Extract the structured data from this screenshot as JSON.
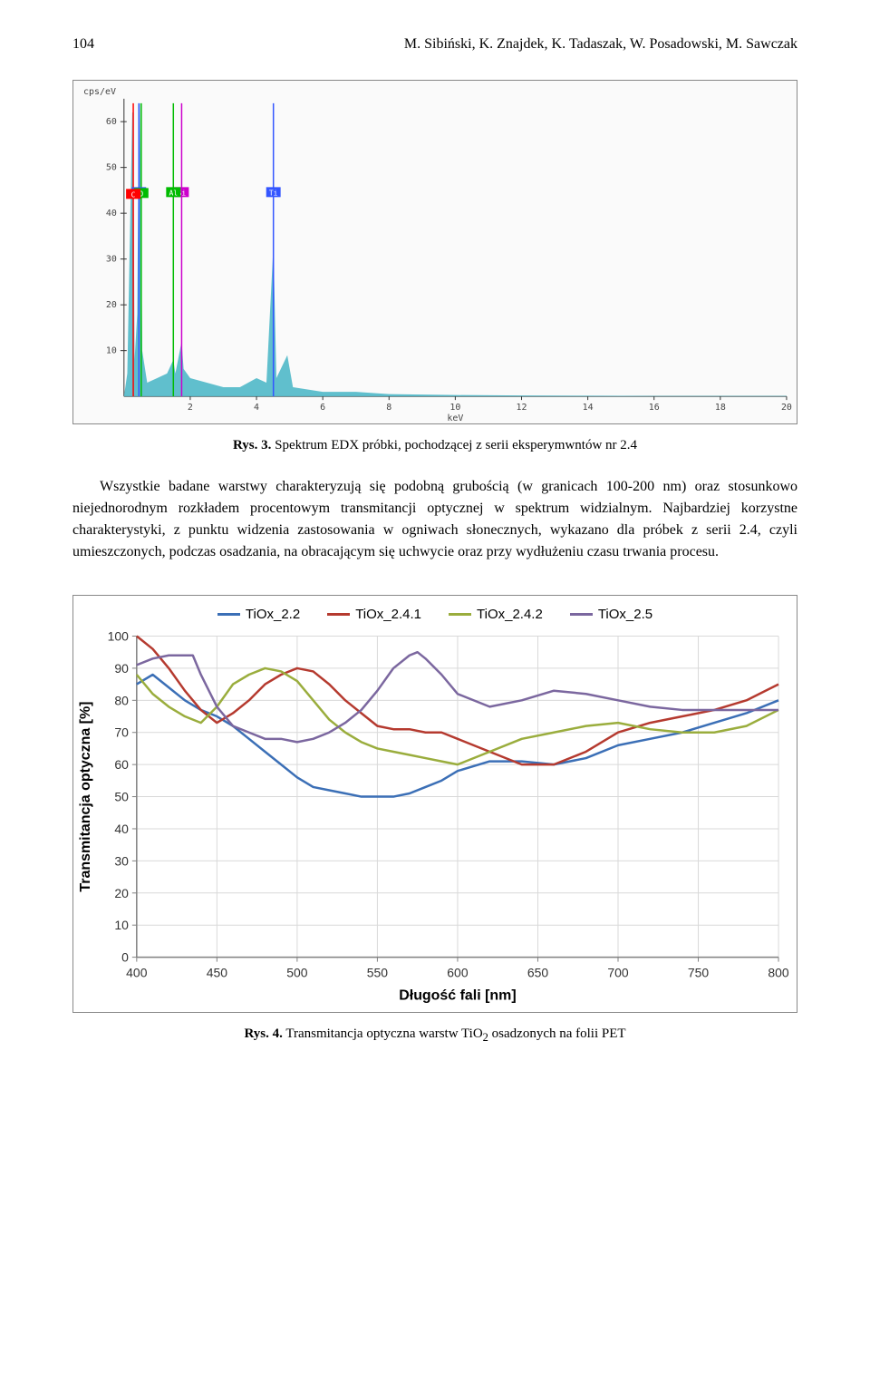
{
  "header": {
    "page_number": "104",
    "authors": "M. Sibiński, K. Znajdek, K. Tadaszak, W. Posadowski, M. Sawczak"
  },
  "edx": {
    "type": "spectrum",
    "y_label": "cps/eV",
    "x_label": "keV",
    "xlim": [
      0,
      20
    ],
    "ylim": [
      0,
      65
    ],
    "y_ticks": [
      10,
      20,
      30,
      40,
      50,
      60
    ],
    "x_ticks": [
      2,
      4,
      6,
      8,
      10,
      12,
      14,
      16,
      18,
      20
    ],
    "background_color": "#fafafa",
    "axis_color": "#333333",
    "element_lines": [
      {
        "label": "Ti",
        "x": 0.45,
        "color": "#3355ff"
      },
      {
        "label": "O",
        "x": 0.52,
        "color": "#00bb00"
      },
      {
        "label": "C",
        "x": 0.28,
        "color": "#ff0000"
      },
      {
        "label": "Si",
        "x": 1.74,
        "color": "#cc00cc"
      },
      {
        "label": "Al",
        "x": 1.49,
        "color": "#00bb00"
      },
      {
        "label": "Ti",
        "x": 4.51,
        "color": "#3355ff"
      }
    ],
    "spectrum_fill": "#4fb8c8",
    "spectrum_points": [
      [
        0,
        0
      ],
      [
        0.1,
        5
      ],
      [
        0.25,
        62
      ],
      [
        0.28,
        62
      ],
      [
        0.32,
        8
      ],
      [
        0.4,
        18
      ],
      [
        0.45,
        64
      ],
      [
        0.48,
        64
      ],
      [
        0.52,
        38
      ],
      [
        0.55,
        10
      ],
      [
        0.7,
        3
      ],
      [
        1.0,
        4
      ],
      [
        1.3,
        5
      ],
      [
        1.49,
        8
      ],
      [
        1.55,
        5
      ],
      [
        1.74,
        12
      ],
      [
        1.8,
        6
      ],
      [
        2.0,
        4
      ],
      [
        2.5,
        3
      ],
      [
        3.0,
        2
      ],
      [
        3.5,
        2
      ],
      [
        4.0,
        4
      ],
      [
        4.3,
        3
      ],
      [
        4.51,
        33
      ],
      [
        4.6,
        4
      ],
      [
        4.93,
        9
      ],
      [
        5.1,
        2
      ],
      [
        6,
        1
      ],
      [
        7,
        1
      ],
      [
        8,
        0.5
      ],
      [
        10,
        0.3
      ],
      [
        12,
        0.2
      ],
      [
        14,
        0.15
      ],
      [
        16,
        0.1
      ],
      [
        18,
        0.1
      ],
      [
        20,
        0.1
      ]
    ],
    "caption_bold": "Rys. 3.",
    "caption_text": " Spektrum EDX próbki, pochodzącej z serii eksperymwntów nr 2.4"
  },
  "paragraph": "Wszystkie badane warstwy charakteryzują się podobną grubością (w granicach 100-200 nm) oraz stosunkowo niejednorodnym rozkładem procentowym transmitancji optycznej w spektrum widzialnym. Najbardziej korzystne charakterystyki, z punktu widzenia zastosowania w ogniwach słonecznych, wykazano dla próbek z serii 2.4, czyli umieszczonych, podczas osadzania, na obracającym się uchwycie oraz przy wydłużeniu czasu trwania procesu.",
  "trans": {
    "type": "line",
    "x_label": "Długość fali [nm]",
    "y_label": "Transmitancja optyczna [%]",
    "xlim": [
      400,
      800
    ],
    "ylim": [
      0,
      100
    ],
    "x_ticks": [
      400,
      450,
      500,
      550,
      600,
      650,
      700,
      750,
      800
    ],
    "y_ticks": [
      0,
      10,
      20,
      30,
      40,
      50,
      60,
      70,
      80,
      90,
      100
    ],
    "grid_color": "#d9d9d9",
    "axis_color": "#808080",
    "line_width": 2.5,
    "series": [
      {
        "name": "TiOx_2.2",
        "color": "#3b6fb6",
        "points": [
          [
            400,
            85
          ],
          [
            410,
            88
          ],
          [
            420,
            84
          ],
          [
            430,
            80
          ],
          [
            440,
            77
          ],
          [
            450,
            75
          ],
          [
            460,
            72
          ],
          [
            470,
            68
          ],
          [
            480,
            64
          ],
          [
            490,
            60
          ],
          [
            500,
            56
          ],
          [
            510,
            53
          ],
          [
            520,
            52
          ],
          [
            530,
            51
          ],
          [
            540,
            50
          ],
          [
            550,
            50
          ],
          [
            560,
            50
          ],
          [
            570,
            51
          ],
          [
            580,
            53
          ],
          [
            590,
            55
          ],
          [
            600,
            58
          ],
          [
            620,
            61
          ],
          [
            640,
            61
          ],
          [
            660,
            60
          ],
          [
            680,
            62
          ],
          [
            700,
            66
          ],
          [
            720,
            68
          ],
          [
            740,
            70
          ],
          [
            760,
            73
          ],
          [
            780,
            76
          ],
          [
            800,
            80
          ]
        ]
      },
      {
        "name": "TiOx_2.4.1",
        "color": "#b53a2f",
        "points": [
          [
            400,
            100
          ],
          [
            410,
            96
          ],
          [
            420,
            90
          ],
          [
            430,
            83
          ],
          [
            440,
            77
          ],
          [
            450,
            73
          ],
          [
            460,
            76
          ],
          [
            470,
            80
          ],
          [
            480,
            85
          ],
          [
            490,
            88
          ],
          [
            500,
            90
          ],
          [
            510,
            89
          ],
          [
            520,
            85
          ],
          [
            530,
            80
          ],
          [
            540,
            76
          ],
          [
            550,
            72
          ],
          [
            560,
            71
          ],
          [
            570,
            71
          ],
          [
            580,
            70
          ],
          [
            590,
            70
          ],
          [
            600,
            68
          ],
          [
            620,
            64
          ],
          [
            640,
            60
          ],
          [
            660,
            60
          ],
          [
            680,
            64
          ],
          [
            700,
            70
          ],
          [
            720,
            73
          ],
          [
            740,
            75
          ],
          [
            760,
            77
          ],
          [
            780,
            80
          ],
          [
            800,
            85
          ]
        ]
      },
      {
        "name": "TiOx_2.4.2",
        "color": "#9aad3d",
        "points": [
          [
            400,
            88
          ],
          [
            410,
            82
          ],
          [
            420,
            78
          ],
          [
            430,
            75
          ],
          [
            440,
            73
          ],
          [
            450,
            78
          ],
          [
            460,
            85
          ],
          [
            470,
            88
          ],
          [
            480,
            90
          ],
          [
            490,
            89
          ],
          [
            500,
            86
          ],
          [
            510,
            80
          ],
          [
            520,
            74
          ],
          [
            530,
            70
          ],
          [
            540,
            67
          ],
          [
            550,
            65
          ],
          [
            560,
            64
          ],
          [
            570,
            63
          ],
          [
            580,
            62
          ],
          [
            590,
            61
          ],
          [
            600,
            60
          ],
          [
            620,
            64
          ],
          [
            640,
            68
          ],
          [
            660,
            70
          ],
          [
            680,
            72
          ],
          [
            700,
            73
          ],
          [
            720,
            71
          ],
          [
            740,
            70
          ],
          [
            760,
            70
          ],
          [
            780,
            72
          ],
          [
            800,
            77
          ]
        ]
      },
      {
        "name": "TiOx_2.5",
        "color": "#7b679f",
        "points": [
          [
            400,
            91
          ],
          [
            410,
            93
          ],
          [
            420,
            94
          ],
          [
            430,
            94
          ],
          [
            435,
            94
          ],
          [
            440,
            88
          ],
          [
            450,
            78
          ],
          [
            460,
            72
          ],
          [
            470,
            70
          ],
          [
            480,
            68
          ],
          [
            490,
            68
          ],
          [
            500,
            67
          ],
          [
            510,
            68
          ],
          [
            520,
            70
          ],
          [
            530,
            73
          ],
          [
            540,
            77
          ],
          [
            550,
            83
          ],
          [
            560,
            90
          ],
          [
            570,
            94
          ],
          [
            575,
            95
          ],
          [
            580,
            93
          ],
          [
            590,
            88
          ],
          [
            600,
            82
          ],
          [
            620,
            78
          ],
          [
            640,
            80
          ],
          [
            660,
            83
          ],
          [
            680,
            82
          ],
          [
            700,
            80
          ],
          [
            720,
            78
          ],
          [
            740,
            77
          ],
          [
            760,
            77
          ],
          [
            780,
            77
          ],
          [
            800,
            77
          ]
        ]
      }
    ],
    "caption_bold": "Rys. 4.",
    "caption_text": " Transmitancja optyczna warstw TiO",
    "caption_sub": "2",
    "caption_after": " osadzonych na folii PET"
  }
}
